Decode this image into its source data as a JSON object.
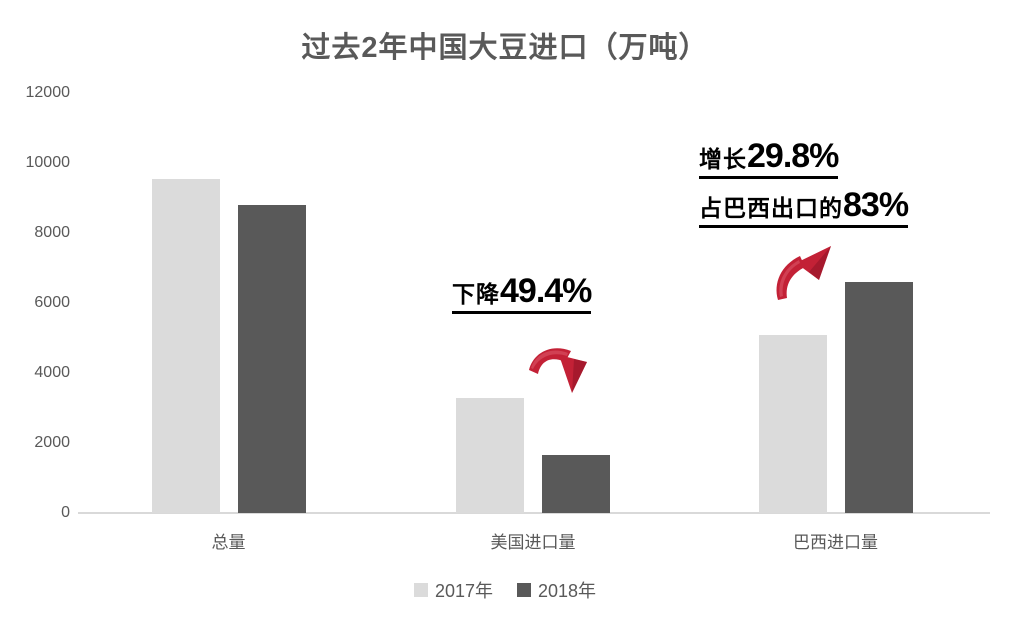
{
  "title": "过去2年中国大豆进口（万吨）",
  "chart_data": {
    "type": "bar",
    "title": "过去2年中国大豆进口（万吨）",
    "categories": [
      "总量",
      "美国进口量",
      "巴西进口量"
    ],
    "series": [
      {
        "name": "2017年",
        "color": "#dbdbdb",
        "values": [
          9550,
          3290,
          5090
        ]
      },
      {
        "name": "2018年",
        "color": "#595959",
        "values": [
          8800,
          1660,
          6600
        ]
      }
    ],
    "xlabel": "",
    "ylabel": "",
    "ylim": [
      0,
      12000
    ],
    "yticks": [
      0,
      2000,
      4000,
      6000,
      8000,
      10000,
      12000
    ],
    "grid": false,
    "legend_position": "bottom",
    "annotations": [
      {
        "target": "美国进口量",
        "prefix": "下降",
        "value": "49.4%",
        "direction": "down"
      },
      {
        "target": "巴西进口量",
        "prefix": "增长",
        "value": "29.8%",
        "direction": "up"
      },
      {
        "target": "巴西进口量",
        "prefix": "占巴西出口的",
        "value": "83%",
        "direction": null
      }
    ]
  },
  "colors": {
    "series_2017": "#dbdbdb",
    "series_2018": "#595959",
    "axis_text": "#595959",
    "baseline": "#d9d9d9",
    "annotation_text": "#000000",
    "arrow_red": "#c32136",
    "arrow_red_dark": "#8e1426"
  }
}
